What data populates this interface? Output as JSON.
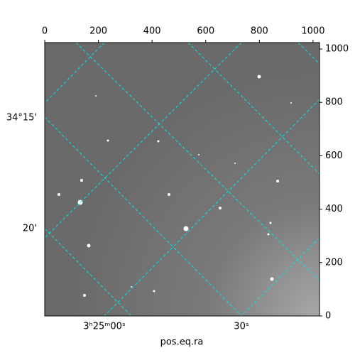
{
  "chart_data": {
    "type": "image",
    "xlabel": "pos.eq.ra",
    "xlim": [
      0,
      1024
    ],
    "xticks": [
      0,
      200,
      400,
      600,
      800,
      1000
    ],
    "ylim": [
      0,
      1024
    ],
    "yticks": [
      0,
      200,
      400,
      600,
      800,
      1000
    ],
    "ra_tick_labels": [
      "3ʰ25ᵐ00ˢ",
      "30ˢ"
    ],
    "dec_tick_labels": [
      "34°15'",
      "20'"
    ]
  }
}
